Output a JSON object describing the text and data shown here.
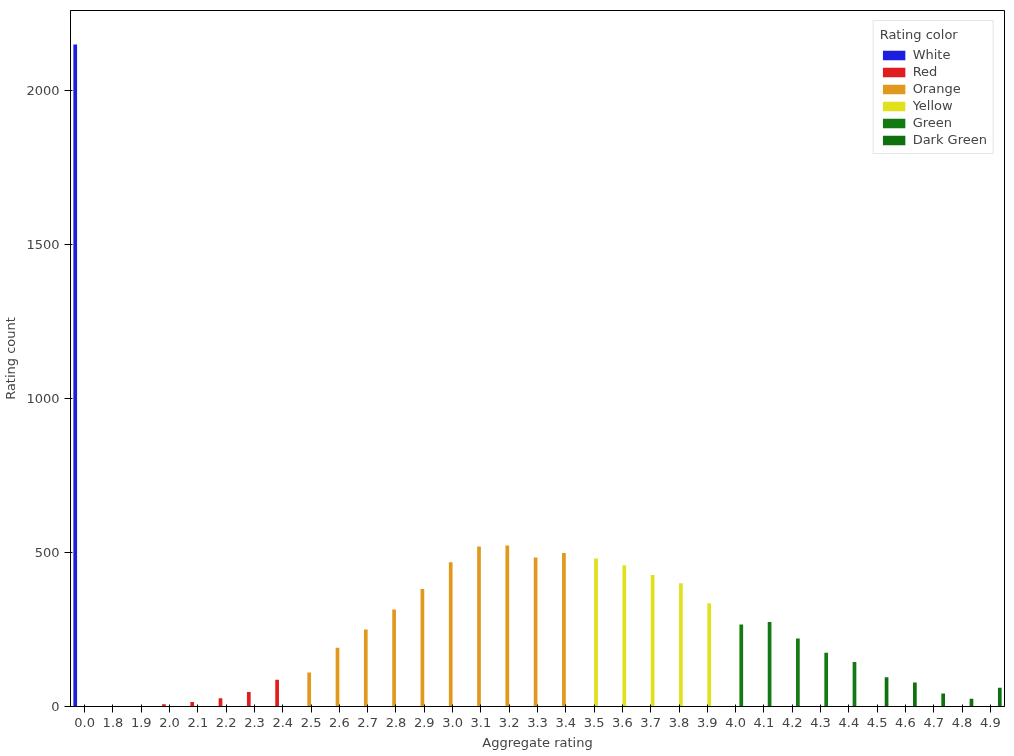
{
  "chart_data": {
    "type": "bar",
    "xlabel": "Aggregate rating",
    "ylabel": "Rating count",
    "legend_title": "Rating color",
    "legend": "top right",
    "grid": false,
    "categories": [
      "0.0",
      "1.8",
      "1.9",
      "2.0",
      "2.1",
      "2.2",
      "2.3",
      "2.4",
      "2.5",
      "2.6",
      "2.7",
      "2.8",
      "2.9",
      "3.0",
      "3.1",
      "3.2",
      "3.3",
      "3.4",
      "3.5",
      "3.6",
      "3.7",
      "3.8",
      "3.9",
      "4.0",
      "4.1",
      "4.2",
      "4.3",
      "4.4",
      "4.5",
      "4.6",
      "4.7",
      "4.8",
      "4.9"
    ],
    "ylim": [
      0,
      2258
    ],
    "yticks": [
      0,
      500,
      1000,
      1500,
      2000
    ],
    "series": [
      {
        "name": "White",
        "color": "#1d1de0",
        "values": [
          2148,
          null,
          null,
          null,
          null,
          null,
          null,
          null,
          null,
          null,
          null,
          null,
          null,
          null,
          null,
          null,
          null,
          null,
          null,
          null,
          null,
          null,
          null,
          null,
          null,
          null,
          null,
          null,
          null,
          null,
          null,
          null,
          null
        ]
      },
      {
        "name": "Red",
        "color": "#e01d1d",
        "values": [
          null,
          1,
          2,
          7,
          15,
          27,
          47,
          87,
          null,
          null,
          null,
          null,
          null,
          null,
          null,
          null,
          null,
          null,
          null,
          null,
          null,
          null,
          null,
          null,
          null,
          null,
          null,
          null,
          null,
          null,
          null,
          null,
          null
        ]
      },
      {
        "name": "Orange",
        "color": "#e0981d",
        "values": [
          null,
          null,
          null,
          null,
          null,
          null,
          null,
          null,
          110,
          191,
          250,
          315,
          381,
          468,
          519,
          522,
          483,
          498,
          null,
          null,
          null,
          null,
          null,
          null,
          null,
          null,
          null,
          null,
          null,
          null,
          null,
          null,
          null
        ]
      },
      {
        "name": "Yellow",
        "color": "#e0e01d",
        "values": [
          null,
          null,
          null,
          null,
          null,
          null,
          null,
          null,
          null,
          null,
          null,
          null,
          null,
          null,
          null,
          null,
          null,
          null,
          480,
          458,
          427,
          400,
          335,
          null,
          null,
          null,
          null,
          null,
          null,
          null,
          null,
          null,
          null
        ]
      },
      {
        "name": "Green",
        "color": "#137a13",
        "values": [
          null,
          null,
          null,
          null,
          null,
          null,
          null,
          null,
          null,
          null,
          null,
          null,
          null,
          null,
          null,
          null,
          null,
          null,
          null,
          null,
          null,
          null,
          null,
          266,
          274,
          221,
          174,
          144,
          null,
          null,
          null,
          null,
          null
        ]
      },
      {
        "name": "Dark Green",
        "color": "#0f700f",
        "values": [
          null,
          null,
          null,
          null,
          null,
          null,
          null,
          null,
          null,
          null,
          null,
          null,
          null,
          null,
          null,
          null,
          null,
          null,
          null,
          null,
          null,
          null,
          null,
          null,
          null,
          null,
          null,
          null,
          95,
          78,
          42,
          25,
          61
        ]
      }
    ]
  }
}
